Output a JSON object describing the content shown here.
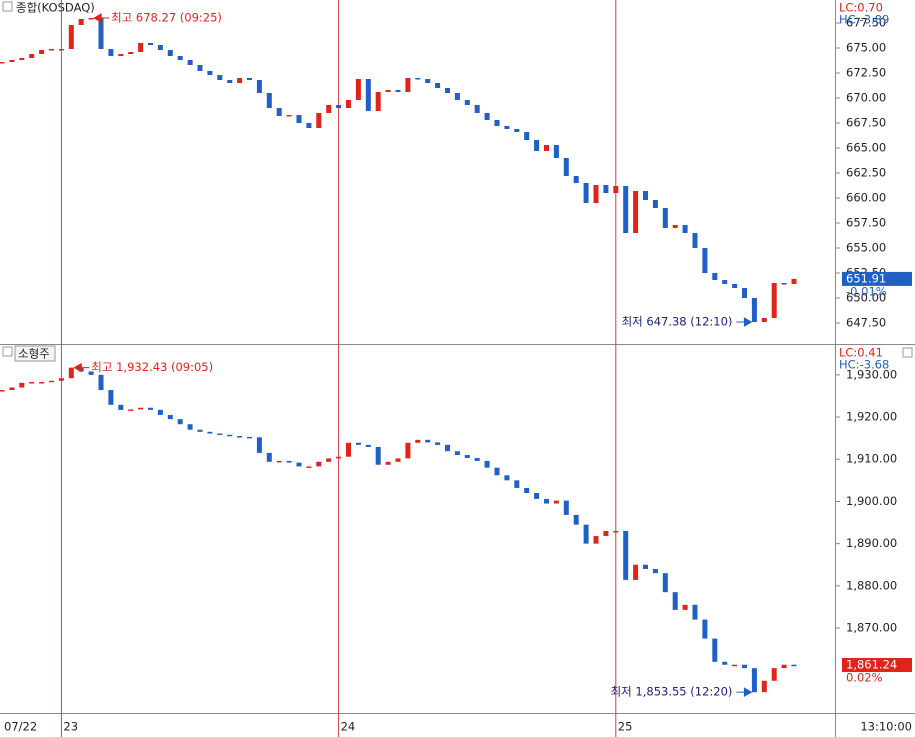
{
  "chart_data": [
    {
      "type": "candle",
      "title": "종합(KOSDAQ)",
      "x_categories": [
        "07/22",
        null,
        null,
        null,
        null,
        null,
        "23",
        null,
        null,
        null,
        null,
        null,
        null,
        null,
        null,
        null,
        null,
        null,
        null,
        null,
        null,
        null,
        null,
        null,
        null,
        null,
        null,
        null,
        null,
        null,
        null,
        null,
        null,
        null,
        "24",
        null,
        null,
        null,
        null,
        null,
        null,
        null,
        null,
        null,
        null,
        null,
        null,
        null,
        null,
        null,
        null,
        null,
        null,
        null,
        null,
        null,
        null,
        null,
        null,
        null,
        null,
        null,
        "25",
        null,
        null,
        null,
        null,
        null,
        null,
        null,
        null,
        null,
        null,
        null,
        null,
        null,
        null,
        null,
        null,
        null,
        null
      ],
      "values": [
        673.6,
        673.8,
        674.0,
        674.4,
        674.8,
        674.9,
        674.9,
        677.3,
        677.9,
        678.0,
        674.9,
        674.2,
        674.4,
        674.6,
        675.5,
        675.3,
        674.8,
        674.2,
        673.8,
        673.3,
        672.7,
        672.3,
        671.8,
        671.5,
        672.0,
        671.8,
        670.5,
        669.0,
        668.2,
        668.3,
        667.5,
        667.0,
        668.5,
        669.3,
        669.0,
        669.8,
        671.9,
        668.7,
        670.6,
        670.8,
        670.6,
        672.0,
        671.9,
        671.5,
        671.0,
        670.5,
        669.8,
        669.3,
        668.5,
        667.8,
        667.2,
        666.9,
        666.6,
        665.8,
        664.7,
        665.3,
        664.0,
        662.2,
        661.5,
        659.5,
        661.3,
        660.5,
        661.2,
        656.5,
        660.7,
        659.8,
        659.0,
        657.0,
        657.3,
        656.5,
        655.0,
        652.5,
        651.8,
        651.4,
        651.0,
        650.0,
        647.6,
        648.0,
        651.5,
        651.4,
        651.91
      ],
      "up_color": "#e2231a",
      "down_color": "#1f5fc6",
      "ylim": [
        645.5,
        679.6
      ],
      "yticks": [
        {
          "value": 647.5,
          "label": "647.50"
        },
        {
          "value": 650,
          "label": "650.00"
        },
        {
          "value": 652.5,
          "label": "652.50"
        },
        {
          "value": 655,
          "label": "655.00"
        },
        {
          "value": 657.5,
          "label": "657.50"
        },
        {
          "value": 660,
          "label": "660.00"
        },
        {
          "value": 662.5,
          "label": "662.50"
        },
        {
          "value": 665,
          "label": "665.00"
        },
        {
          "value": 667.5,
          "label": "667.50"
        },
        {
          "value": 670,
          "label": "670.00"
        },
        {
          "value": 672.5,
          "label": "672.50"
        },
        {
          "value": 675,
          "label": "675.00"
        },
        {
          "value": 677.5,
          "label": "677.50"
        }
      ],
      "max_note": "최고 678.27 (09:25)",
      "min_note": "최저 647.38 (12:10)",
      "lc": "LC:0.70",
      "hc": "HC:-3.89",
      "last": {
        "value": 651.91,
        "label": "651.91"
      },
      "last_color": "#1f5fc6",
      "change": "-0.01%"
    },
    {
      "type": "candle",
      "title": "소형주",
      "values": [
        1926.4,
        1927.0,
        1928.1,
        1928.3,
        1928.3,
        1928.6,
        1929.2,
        1931.7,
        1930.8,
        1930.0,
        1926.4,
        1922.9,
        1921.7,
        1921.8,
        1922.2,
        1921.7,
        1920.5,
        1919.5,
        1918.3,
        1917.0,
        1916.5,
        1916.1,
        1915.8,
        1915.5,
        1915.3,
        1915.2,
        1911.5,
        1909.4,
        1909.6,
        1909.2,
        1908.3,
        1908.3,
        1909.4,
        1910.2,
        1910.6,
        1913.9,
        1913.4,
        1912.9,
        1908.7,
        1909.4,
        1910.2,
        1913.9,
        1914.6,
        1914.0,
        1913.4,
        1911.9,
        1911.0,
        1910.3,
        1909.6,
        1908.0,
        1906.2,
        1905.0,
        1903.2,
        1902.0,
        1900.6,
        1899.5,
        1900.2,
        1896.8,
        1894.5,
        1890.0,
        1891.8,
        1893.0,
        1893.0,
        1881.4,
        1885.0,
        1884.0,
        1883.0,
        1878.5,
        1874.3,
        1875.5,
        1872.0,
        1867.5,
        1862.0,
        1861.3,
        1861.3,
        1860.5,
        1854.8,
        1857.5,
        1860.5,
        1861.3,
        1861.24
      ],
      "up_color": "#e2231a",
      "down_color": "#1f5fc6",
      "ylim": [
        1850.1,
        1936.6
      ],
      "yticks": [
        {
          "value": 1870,
          "label": "1,870.00"
        },
        {
          "value": 1880,
          "label": "1,880.00"
        },
        {
          "value": 1890,
          "label": "1,890.00"
        },
        {
          "value": 1900,
          "label": "1,900.00"
        },
        {
          "value": 1910,
          "label": "1,910.00"
        },
        {
          "value": 1920,
          "label": "1,920.00"
        },
        {
          "value": 1930,
          "label": "1,930.00"
        }
      ],
      "max_note": "최고 1,932.43 (09:05)",
      "min_note": "최저 1,853.55 (12:20)",
      "lc": "LC:0.41",
      "hc": "HC:-3.68",
      "last": {
        "value": 1861.24,
        "label": "1,861.24"
      },
      "last_color": "#e2231a",
      "change": "0.02%"
    }
  ],
  "time_label": "13:10:00"
}
